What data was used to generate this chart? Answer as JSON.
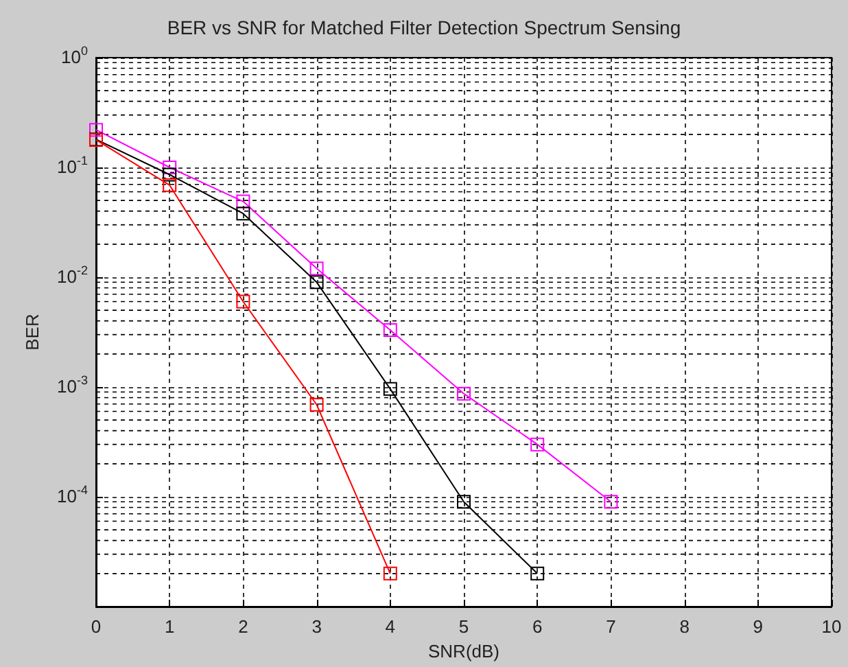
{
  "chart_data": {
    "type": "line",
    "title": "BER vs SNR for Matched Filter Detection Spectrum Sensing",
    "xlabel": "SNR(dB)",
    "ylabel": "BER",
    "x": [
      0,
      1,
      2,
      3,
      4,
      5,
      6,
      7
    ],
    "series": [
      {
        "color": "#ff0000",
        "values": [
          0.178,
          0.069,
          0.006,
          0.00069,
          2e-05,
          null,
          null,
          null
        ]
      },
      {
        "color": "#000000",
        "values": [
          0.18,
          0.086,
          0.038,
          0.009,
          0.00096,
          9e-05,
          2e-05,
          null
        ]
      },
      {
        "color": "#ff00ff",
        "values": [
          0.22,
          0.1,
          0.049,
          0.012,
          0.0033,
          0.00087,
          0.0003,
          9e-05
        ]
      }
    ],
    "xlim": [
      0,
      10
    ],
    "xticks": [
      0,
      1,
      2,
      3,
      4,
      5,
      6,
      7,
      8,
      9,
      10
    ],
    "ylim": [
      1e-05,
      1
    ],
    "yticks": [
      {
        "value": 1e-05,
        "label": null
      },
      {
        "value": 0.0001,
        "label": "10$^{-4}$"
      },
      {
        "value": 0.001,
        "label": "10$^{-3}$"
      },
      {
        "value": 0.01,
        "label": "10$^{-2}$"
      },
      {
        "value": 0.1,
        "label": "10$^{-1}$"
      },
      {
        "value": 1,
        "label": "10$^{0}$"
      }
    ],
    "log": "y",
    "grid": true,
    "marker": "square",
    "line_style": "solid"
  }
}
